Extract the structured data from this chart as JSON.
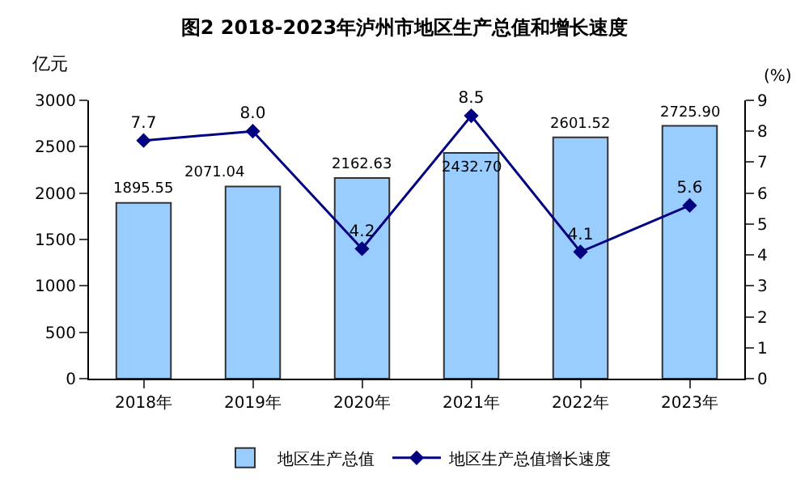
{
  "chart_data": {
    "type": "bar",
    "title": "图2 2018-2023年泸州市地区生产总值和增长速度",
    "ylabel": "亿元",
    "y2label": "(%)",
    "categories": [
      "2018年",
      "2019年",
      "2020年",
      "2021年",
      "2022年",
      "2023年"
    ],
    "series": [
      {
        "name": "地区生产总值",
        "color": "#99ccff",
        "values": [
          1895.55,
          2071.04,
          2162.63,
          2432.7,
          2601.52,
          2725.9
        ],
        "value_labels": [
          "1895.55",
          "2071.04",
          "2162.63",
          "2432.70",
          "2601.52",
          "2725.90"
        ]
      },
      {
        "name": "地区生产总值增长速度",
        "type": "line",
        "axis": "y2",
        "color": "#000080",
        "marker": "diamond",
        "values": [
          7.7,
          8.0,
          4.2,
          8.5,
          4.1,
          5.6
        ],
        "value_labels": [
          "7.7",
          "8.0",
          "4.2",
          "8.5",
          "4.1",
          "5.6"
        ]
      }
    ],
    "ylim": [
      0,
      3000
    ],
    "yticks": [
      0,
      500,
      1000,
      1500,
      2000,
      2500,
      3000
    ],
    "y2lim": [
      0,
      9
    ],
    "y2ticks": [
      0,
      1,
      2,
      3,
      4,
      5,
      6,
      7,
      8,
      9
    ],
    "legend": "bottom"
  }
}
